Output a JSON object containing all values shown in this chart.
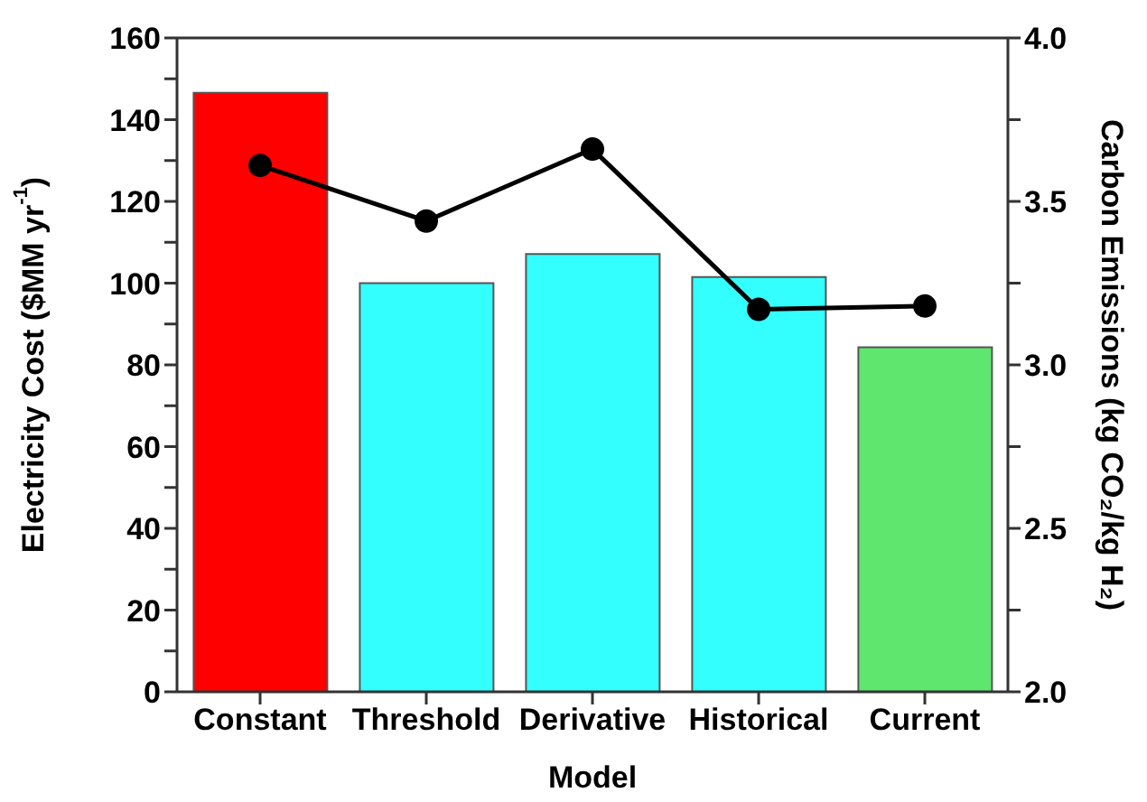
{
  "chart_data": {
    "type": "bar",
    "xlabel": "Model",
    "ylabel": "Electricity Cost ($MM yr$^{-1}$)",
    "y2label": "Carbon Emissions (kg CO₂/kg H₂)",
    "categories": [
      "Constant",
      "Threshold",
      "Derivative",
      "Historical",
      "Current"
    ],
    "series": [
      {
        "colors": [
          "#ff0000",
          "#33ffff",
          "#33ffff",
          "#33ffff",
          "#5ee66e"
        ],
        "values": [
          146.6,
          100,
          107.1,
          101.5,
          84.3
        ]
      },
      {
        "type": "line",
        "axis": "y2",
        "color": "#000000",
        "marker": "circle",
        "line_style": "solid",
        "values": [
          3.61,
          3.44,
          3.66,
          3.17,
          3.18
        ]
      }
    ],
    "ylim": [
      0,
      160
    ],
    "yticks": [
      0,
      {
        "value": 10,
        "label": null
      },
      20,
      {
        "value": 30,
        "label": null
      },
      40,
      {
        "value": 50,
        "label": null
      },
      60,
      {
        "value": 70,
        "label": null
      },
      80,
      {
        "value": 90,
        "label": null
      },
      100,
      {
        "value": 110,
        "label": null
      },
      120,
      {
        "value": 130,
        "label": null
      },
      140,
      {
        "value": 150,
        "label": null
      },
      160
    ],
    "y2lim": [
      2.0,
      4.0
    ],
    "y2ticks": [
      {
        "value": 2,
        "label": "2.0"
      },
      {
        "value": 2.25,
        "label": null
      },
      {
        "value": 2.5,
        "label": "2.5"
      },
      {
        "value": 2.75,
        "label": null
      },
      {
        "value": 3,
        "label": "3.0"
      },
      {
        "value": 3.25,
        "label": null
      },
      {
        "value": 3.5,
        "label": "3.5"
      },
      {
        "value": 3.75,
        "label": null
      },
      {
        "value": 4,
        "label": "4.0"
      }
    ],
    "grid": false,
    "legend": false
  }
}
